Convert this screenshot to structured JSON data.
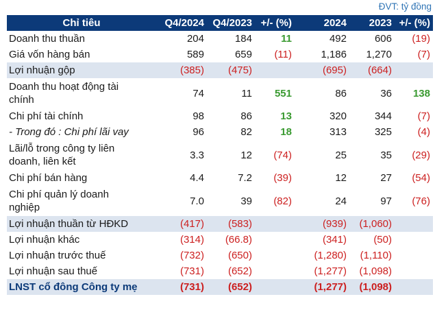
{
  "unit_note": "ĐVT: tỷ đồng",
  "headers": [
    "Chỉ tiêu",
    "Q4/2024",
    "Q4/2023",
    "+/- (%)",
    "2024",
    "2023",
    "+/- (%)"
  ],
  "rows": [
    {
      "label": "Doanh thu thuần",
      "q4_2024": "204",
      "q4_2023": "184",
      "q_change": "11",
      "y2024": "492",
      "y2023": "606",
      "y_change": "(19)"
    },
    {
      "label": "Giá vốn hàng bán",
      "q4_2024": "589",
      "q4_2023": "659",
      "q_change": "(11)",
      "y2024": "1,186",
      "y2023": "1,270",
      "y_change": "(7)"
    },
    {
      "label": "Lợi nhuận gộp",
      "q4_2024": "(385)",
      "q4_2023": "(475)",
      "q_change": "",
      "y2024": "(695)",
      "y2023": "(664)",
      "y_change": ""
    },
    {
      "label_line1": "Doanh thu hoạt động tài",
      "label_line2": "chính",
      "q4_2024": "74",
      "q4_2023": "11",
      "q_change": "551",
      "y2024": "86",
      "y2023": "36",
      "y_change": "138"
    },
    {
      "label": "Chi phí tài chính",
      "q4_2024": "98",
      "q4_2023": "86",
      "q_change": "13",
      "y2024": "320",
      "y2023": "344",
      "y_change": "(7)"
    },
    {
      "label": "- Trong đó : Chi phí lãi vay",
      "q4_2024": "96",
      "q4_2023": "82",
      "q_change": "18",
      "y2024": "313",
      "y2023": "325",
      "y_change": "(4)"
    },
    {
      "label_line1": "Lãi/lỗ trong công ty liên",
      "label_line2": "doanh, liên kết",
      "q4_2024": "3.3",
      "q4_2023": "12",
      "q_change": "(74)",
      "y2024": "25",
      "y2023": "35",
      "y_change": "(29)"
    },
    {
      "label": "Chi phí bán hàng",
      "q4_2024": "4.4",
      "q4_2023": "7.2",
      "q_change": "(39)",
      "y2024": "12",
      "y2023": "27",
      "y_change": "(54)"
    },
    {
      "label_line1": "Chi phí quản lý doanh",
      "label_line2": "nghiệp",
      "q4_2024": "7.0",
      "q4_2023": "39",
      "q_change": "(82)",
      "y2024": "24",
      "y2023": "97",
      "y_change": "(76)"
    },
    {
      "label": "Lợi nhuận thuần từ HĐKD",
      "q4_2024": "(417)",
      "q4_2023": "(583)",
      "q_change": "",
      "y2024": "(939)",
      "y2023": "(1,060)",
      "y_change": ""
    },
    {
      "label": "Lợi nhuận khác",
      "q4_2024": "(314)",
      "q4_2023": "(66.8)",
      "q_change": "",
      "y2024": "(341)",
      "y2023": "(50)",
      "y_change": ""
    },
    {
      "label": "Lợi nhuận trước thuế",
      "q4_2024": "(732)",
      "q4_2023": "(650)",
      "q_change": "",
      "y2024": "(1,280)",
      "y2023": "(1,110)",
      "y_change": ""
    },
    {
      "label": "Lợi nhuận sau thuế",
      "q4_2024": "(731)",
      "q4_2023": "(652)",
      "q_change": "",
      "y2024": "(1,277)",
      "y2023": "(1,098)",
      "y_change": ""
    },
    {
      "label": "LNST cổ đông Công ty mẹ",
      "q4_2024": "(731)",
      "q4_2023": "(652)",
      "q_change": "",
      "y2024": "(1,277)",
      "y2023": "(1,098)",
      "y_change": ""
    }
  ],
  "colors": {
    "header_bg": "#0c3a79",
    "highlight_bg": "#dce4ef",
    "negative": "#cc1f1f",
    "positive": "#3a9a31",
    "unit_note": "#2f74b5"
  }
}
